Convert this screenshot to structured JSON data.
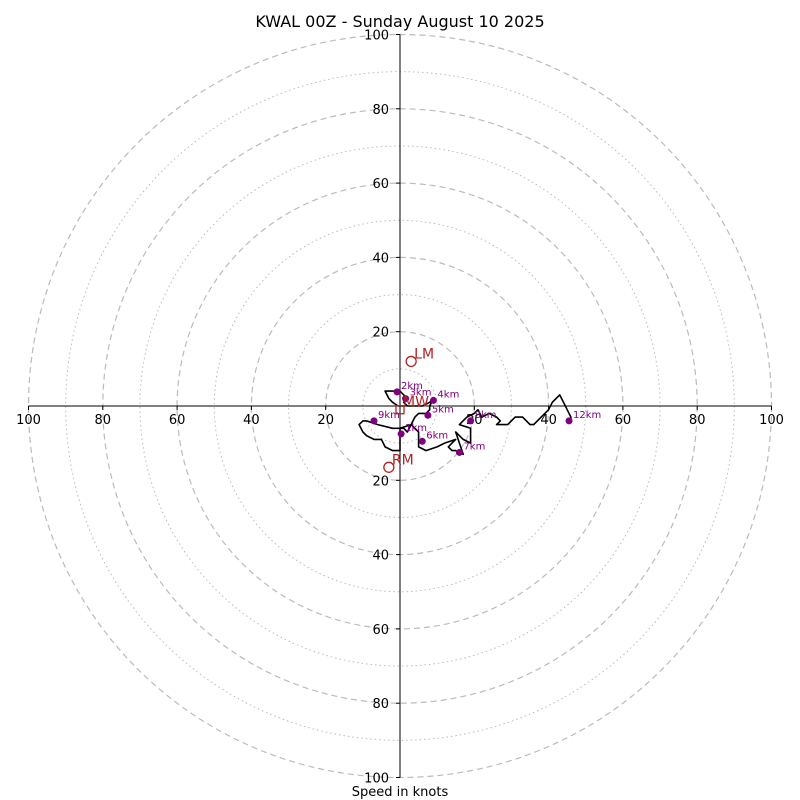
{
  "chart_data": {
    "type": "scatter",
    "title": "KWAL 00Z - Sunday August 10 2025",
    "xlabel": "Speed in knots",
    "axis_range": [
      -100,
      100
    ],
    "ring_major": [
      20,
      40,
      60,
      80,
      100
    ],
    "ring_minor": [
      10,
      30,
      50,
      70,
      90
    ],
    "x_tick_labels": [
      "100",
      "80",
      "60",
      "40",
      "20",
      "20",
      "40",
      "60",
      "80",
      "100"
    ],
    "y_tick_labels": [
      "100",
      "80",
      "60",
      "40",
      "20",
      "20",
      "40",
      "60",
      "80",
      "100"
    ],
    "x_tick_values": [
      -100,
      -80,
      -60,
      -40,
      -20,
      20,
      40,
      60,
      80,
      100
    ],
    "y_tick_values": [
      100,
      80,
      60,
      40,
      20,
      -20,
      -40,
      -60,
      -80,
      -100
    ],
    "colors": {
      "hodograph": "#000000",
      "height_marker": "#800080",
      "motion": "#b22222",
      "grid": "#bbbbbb"
    },
    "hodograph": [
      [
        1.5,
        0
      ],
      [
        -0.5,
        0
      ],
      [
        -2,
        1
      ],
      [
        -3,
        2
      ],
      [
        -4,
        4
      ],
      [
        -2,
        4
      ],
      [
        0,
        4
      ],
      [
        1,
        3
      ],
      [
        2,
        2
      ],
      [
        1,
        1
      ],
      [
        2,
        0
      ],
      [
        4,
        0
      ],
      [
        6,
        0
      ],
      [
        8,
        1
      ],
      [
        9,
        2
      ],
      [
        8,
        0
      ],
      [
        8,
        -1
      ],
      [
        7,
        -2
      ],
      [
        5,
        -2
      ],
      [
        4,
        -3
      ],
      [
        3,
        -5
      ],
      [
        2,
        -7
      ],
      [
        1,
        -6
      ],
      [
        -2,
        -6
      ],
      [
        -6,
        -5
      ],
      [
        -9,
        -4
      ],
      [
        -10,
        -4
      ],
      [
        -11,
        -5
      ],
      [
        -10,
        -7
      ],
      [
        -9,
        -8
      ],
      [
        -7,
        -9
      ],
      [
        -5,
        -9
      ],
      [
        -4,
        -11
      ],
      [
        -2,
        -12
      ],
      [
        0,
        -12
      ],
      [
        0,
        -10
      ],
      [
        0,
        -8
      ],
      [
        0,
        -6
      ],
      [
        3,
        -5
      ],
      [
        5,
        -7
      ],
      [
        5,
        -9
      ],
      [
        5,
        -11
      ],
      [
        7,
        -12
      ],
      [
        10,
        -11
      ],
      [
        12,
        -10
      ],
      [
        15,
        -9
      ],
      [
        14,
        -10
      ],
      [
        13,
        -11
      ],
      [
        14,
        -12
      ],
      [
        15,
        -12
      ],
      [
        17,
        -13
      ],
      [
        16,
        -10
      ],
      [
        15,
        -7
      ],
      [
        17,
        -9
      ],
      [
        19,
        -10
      ],
      [
        19,
        -6
      ],
      [
        16,
        -5
      ],
      [
        18,
        -3
      ],
      [
        20,
        -2
      ],
      [
        21,
        -1
      ],
      [
        22,
        -3
      ],
      [
        24,
        -2
      ],
      [
        26,
        -3
      ],
      [
        27,
        -4
      ],
      [
        26,
        -5
      ],
      [
        28,
        -5
      ],
      [
        29,
        -5
      ],
      [
        31,
        -3
      ],
      [
        32,
        -3
      ],
      [
        33,
        -3
      ],
      [
        35,
        -5
      ],
      [
        36,
        -5
      ],
      [
        38,
        -3
      ],
      [
        40,
        -1
      ],
      [
        41,
        1
      ],
      [
        42,
        2
      ],
      [
        43,
        3
      ],
      [
        44,
        1
      ],
      [
        45,
        -1
      ],
      [
        46,
        -3
      ],
      [
        46,
        -4
      ]
    ],
    "heights": [
      {
        "label": "1km",
        "x": 0.3,
        "y": -7.5
      },
      {
        "label": "2km",
        "x": -0.8,
        "y": 3.8
      },
      {
        "label": "3km",
        "x": 1.5,
        "y": 2
      },
      {
        "label": "4km",
        "x": 9,
        "y": 1.5
      },
      {
        "label": "5km",
        "x": 7.5,
        "y": -2.5
      },
      {
        "label": "6km",
        "x": 6,
        "y": -9.5
      },
      {
        "label": "7km",
        "x": 16,
        "y": -12.5
      },
      {
        "label": "8km",
        "x": 19,
        "y": -4
      },
      {
        "label": "9km",
        "x": -7,
        "y": -4
      },
      {
        "label": "12km",
        "x": 45.5,
        "y": -4
      }
    ],
    "storm_motion": [
      {
        "label": "LM",
        "x": 3,
        "y": 12
      },
      {
        "label": "RM",
        "x": -3,
        "y": -16.5
      },
      {
        "label": "MW",
        "x": 0,
        "y": -1
      }
    ]
  }
}
